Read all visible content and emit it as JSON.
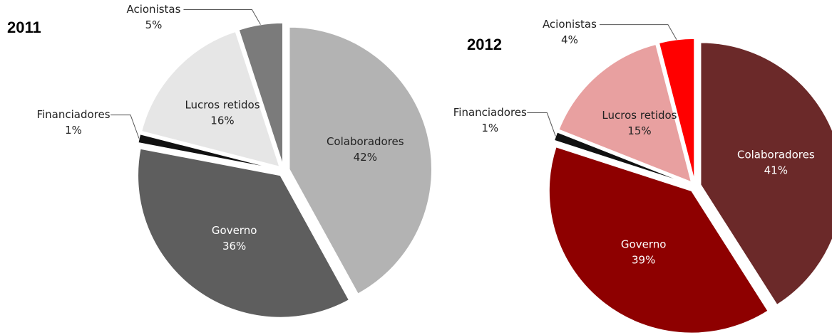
{
  "chart_data": [
    {
      "type": "pie",
      "title": "2011",
      "categories": [
        "Colaboradores",
        "Governo",
        "Financiadores",
        "Lucros retidos",
        "Acionistas"
      ],
      "values": [
        42,
        36,
        1,
        16,
        5
      ],
      "value_labels": [
        "42%",
        "36%",
        "1%",
        "16%",
        "5%"
      ],
      "colors": [
        "#b3b3b3",
        "#5e5e5e",
        "#111111",
        "#e6e6e6",
        "#7b7b7b"
      ]
    },
    {
      "type": "pie",
      "title": "2012",
      "categories": [
        "Colaboradores",
        "Governo",
        "Financiadores",
        "Lucros retidos",
        "Acionistas"
      ],
      "values": [
        41,
        39,
        1,
        15,
        4
      ],
      "value_labels": [
        "41%",
        "39%",
        "1%",
        "15%",
        "4%"
      ],
      "colors": [
        "#6b2929",
        "#8e0000",
        "#111111",
        "#e8a0a0",
        "#ff0000"
      ]
    }
  ]
}
